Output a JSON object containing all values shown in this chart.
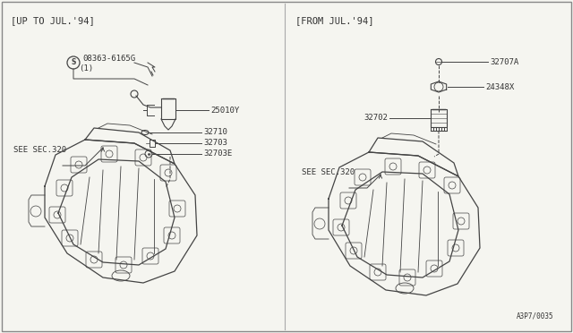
{
  "bg_color": "#f5f5f0",
  "border_color": "#888888",
  "line_color": "#444444",
  "text_color": "#333333",
  "fig_width": 6.4,
  "fig_height": 3.72,
  "left_header": "[UP TO JUL.'94]",
  "right_header": "[FROM JUL.'94]",
  "left_see_label": "SEE SEC.320",
  "right_see_label": "SEE SEC.320",
  "footer": "A3P7/0035",
  "left_parts": {
    "part1_label": "08363-6165G",
    "part1_sub": "(1)",
    "part2_label": "25010Y",
    "part3_label": "32710",
    "part4_label": "32703",
    "part5_label": "32703E"
  },
  "right_parts": {
    "part1_label": "32707A",
    "part2_label": "24348X",
    "part3_label": "32702"
  }
}
